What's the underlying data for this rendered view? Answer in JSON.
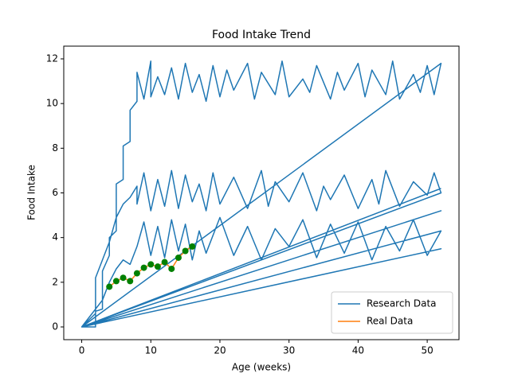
{
  "chart_data": {
    "type": "line",
    "title": "Food Intake Trend",
    "xlabel": "Age (weeks)",
    "ylabel": "Food Intake",
    "xlim": [
      -2.6,
      54.6
    ],
    "ylim": [
      -0.57,
      12.57
    ],
    "xticks": [
      0,
      10,
      20,
      30,
      40,
      50
    ],
    "yticks": [
      0,
      2,
      4,
      6,
      8,
      10,
      12
    ],
    "legend": "lower right",
    "series": [
      {
        "name": "Research Data",
        "color": "#1f77b4",
        "x": [
          0,
          2,
          2,
          3,
          3,
          4,
          4,
          5,
          5,
          6,
          6,
          7,
          7,
          8,
          8,
          9,
          10,
          10,
          11,
          12,
          13,
          14,
          15,
          16,
          17,
          18,
          19,
          20,
          21,
          22,
          24,
          25,
          26,
          28,
          29,
          30,
          32,
          33,
          34,
          36,
          37,
          38,
          40,
          41,
          42,
          44,
          45,
          46,
          48,
          49,
          50,
          51,
          52,
          0,
          2,
          2,
          3,
          4,
          5,
          6,
          7,
          8,
          8,
          9,
          10,
          11,
          12,
          13,
          14,
          15,
          16,
          17,
          18,
          19,
          20,
          22,
          24,
          26,
          27,
          28,
          30,
          32,
          34,
          35,
          36,
          38,
          40,
          42,
          43,
          44,
          46,
          48,
          50,
          51,
          52,
          0,
          3,
          4,
          5,
          6,
          7,
          8,
          9,
          10,
          11,
          12,
          13,
          14,
          15,
          16,
          17,
          18,
          20,
          22,
          24,
          26,
          28,
          30,
          32,
          34,
          36,
          38,
          40,
          42,
          44,
          46,
          48,
          50,
          52,
          0,
          52,
          0,
          52,
          0,
          52
        ],
        "values": [
          0,
          0,
          0.7,
          0.8,
          2.5,
          3.2,
          4.0,
          4.3,
          6.4,
          6.6,
          8.1,
          8.3,
          9.7,
          10.1,
          11.4,
          10.2,
          11.9,
          10.3,
          11.2,
          10.4,
          11.6,
          10.2,
          11.8,
          10.5,
          11.3,
          10.1,
          11.7,
          10.3,
          11.5,
          10.6,
          11.8,
          10.2,
          11.4,
          10.4,
          11.9,
          10.3,
          11.1,
          10.5,
          11.7,
          10.2,
          11.4,
          10.6,
          11.8,
          10.3,
          11.5,
          10.4,
          11.9,
          10.2,
          11.3,
          10.5,
          11.7,
          10.4,
          11.8,
          0,
          0.6,
          2.2,
          3.0,
          3.8,
          4.9,
          5.5,
          5.8,
          6.3,
          5.5,
          6.9,
          5.2,
          6.6,
          5.4,
          7.0,
          5.3,
          6.8,
          5.6,
          6.4,
          5.2,
          6.9,
          5.5,
          6.7,
          5.3,
          7.0,
          5.4,
          6.5,
          5.6,
          6.9,
          5.2,
          6.3,
          5.7,
          6.8,
          5.3,
          6.6,
          5.5,
          7.0,
          5.4,
          6.5,
          5.9,
          6.9,
          6.0,
          0,
          1.2,
          2.0,
          2.6,
          3.0,
          2.8,
          3.6,
          4.7,
          3.2,
          4.5,
          3.1,
          4.8,
          3.4,
          4.6,
          3.0,
          4.3,
          3.3,
          4.9,
          3.2,
          4.5,
          3.0,
          4.4,
          3.6,
          4.8,
          3.1,
          4.6,
          3.3,
          4.7,
          3.0,
          4.5,
          3.4,
          4.8,
          3.2,
          4.3,
          0,
          5.2,
          0,
          3.5,
          0,
          6.2
        ]
      },
      {
        "name": "Real Data",
        "color": "#ff7f0e",
        "marker_color": "green",
        "x": [
          4,
          5,
          6,
          7,
          8,
          9,
          10,
          11,
          12,
          13,
          14,
          15,
          16
        ],
        "values": [
          1.8,
          2.05,
          2.2,
          2.05,
          2.4,
          2.65,
          2.8,
          2.7,
          2.9,
          2.6,
          3.1,
          3.4,
          3.6
        ]
      }
    ]
  }
}
